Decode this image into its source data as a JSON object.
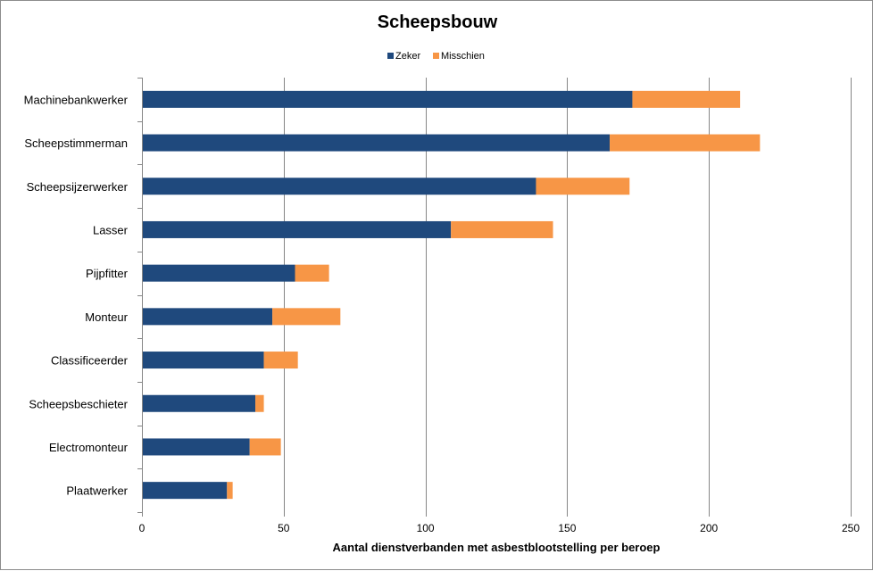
{
  "chart_data": {
    "type": "bar",
    "orientation": "horizontal",
    "stacked": true,
    "title": "Scheepsbouw",
    "xlabel": "Aantal dienstverbanden met asbestblootstelling per beroep",
    "ylabel": "",
    "xlim": [
      0,
      250
    ],
    "xticks": [
      0,
      50,
      100,
      150,
      200,
      250
    ],
    "grid": true,
    "legend_position": "top",
    "categories": [
      "Machinebankwerker",
      "Scheepstimmerman",
      "Scheepsijzerwerker",
      "Lasser",
      "Pijpfitter",
      "Monteur",
      "Classificeerder",
      "Scheepsbeschieter",
      "Electromonteur",
      "Plaatwerker"
    ],
    "series": [
      {
        "name": "Zeker",
        "color": "#1f497d",
        "values": [
          173,
          165,
          139,
          109,
          54,
          46,
          43,
          40,
          38,
          30
        ]
      },
      {
        "name": "Misschien",
        "color": "#f79646",
        "values": [
          38,
          53,
          33,
          36,
          12,
          24,
          12,
          3,
          11,
          2
        ]
      }
    ]
  }
}
